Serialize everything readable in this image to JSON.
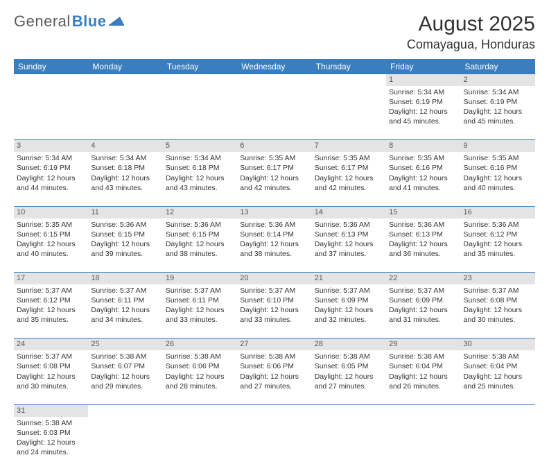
{
  "logo": {
    "word1": "General",
    "word2": "Blue"
  },
  "title": "August 2025",
  "location": "Comayagua, Honduras",
  "colors": {
    "header_bg": "#3a7ebf",
    "header_text": "#ffffff",
    "daynum_bg": "#e4e4e4",
    "border": "#3a7ebf",
    "text": "#333333",
    "logo_gray": "#5a5a5a",
    "logo_blue": "#3a7ebf",
    "background": "#ffffff"
  },
  "day_headers": [
    "Sunday",
    "Monday",
    "Tuesday",
    "Wednesday",
    "Thursday",
    "Friday",
    "Saturday"
  ],
  "weeks": [
    {
      "nums": [
        "",
        "",
        "",
        "",
        "",
        "1",
        "2"
      ],
      "cells": [
        null,
        null,
        null,
        null,
        null,
        {
          "sunrise": "Sunrise: 5:34 AM",
          "sunset": "Sunset: 6:19 PM",
          "day1": "Daylight: 12 hours",
          "day2": "and 45 minutes."
        },
        {
          "sunrise": "Sunrise: 5:34 AM",
          "sunset": "Sunset: 6:19 PM",
          "day1": "Daylight: 12 hours",
          "day2": "and 45 minutes."
        }
      ]
    },
    {
      "nums": [
        "3",
        "4",
        "5",
        "6",
        "7",
        "8",
        "9"
      ],
      "cells": [
        {
          "sunrise": "Sunrise: 5:34 AM",
          "sunset": "Sunset: 6:19 PM",
          "day1": "Daylight: 12 hours",
          "day2": "and 44 minutes."
        },
        {
          "sunrise": "Sunrise: 5:34 AM",
          "sunset": "Sunset: 6:18 PM",
          "day1": "Daylight: 12 hours",
          "day2": "and 43 minutes."
        },
        {
          "sunrise": "Sunrise: 5:34 AM",
          "sunset": "Sunset: 6:18 PM",
          "day1": "Daylight: 12 hours",
          "day2": "and 43 minutes."
        },
        {
          "sunrise": "Sunrise: 5:35 AM",
          "sunset": "Sunset: 6:17 PM",
          "day1": "Daylight: 12 hours",
          "day2": "and 42 minutes."
        },
        {
          "sunrise": "Sunrise: 5:35 AM",
          "sunset": "Sunset: 6:17 PM",
          "day1": "Daylight: 12 hours",
          "day2": "and 42 minutes."
        },
        {
          "sunrise": "Sunrise: 5:35 AM",
          "sunset": "Sunset: 6:16 PM",
          "day1": "Daylight: 12 hours",
          "day2": "and 41 minutes."
        },
        {
          "sunrise": "Sunrise: 5:35 AM",
          "sunset": "Sunset: 6:16 PM",
          "day1": "Daylight: 12 hours",
          "day2": "and 40 minutes."
        }
      ]
    },
    {
      "nums": [
        "10",
        "11",
        "12",
        "13",
        "14",
        "15",
        "16"
      ],
      "cells": [
        {
          "sunrise": "Sunrise: 5:35 AM",
          "sunset": "Sunset: 6:15 PM",
          "day1": "Daylight: 12 hours",
          "day2": "and 40 minutes."
        },
        {
          "sunrise": "Sunrise: 5:36 AM",
          "sunset": "Sunset: 6:15 PM",
          "day1": "Daylight: 12 hours",
          "day2": "and 39 minutes."
        },
        {
          "sunrise": "Sunrise: 5:36 AM",
          "sunset": "Sunset: 6:15 PM",
          "day1": "Daylight: 12 hours",
          "day2": "and 38 minutes."
        },
        {
          "sunrise": "Sunrise: 5:36 AM",
          "sunset": "Sunset: 6:14 PM",
          "day1": "Daylight: 12 hours",
          "day2": "and 38 minutes."
        },
        {
          "sunrise": "Sunrise: 5:36 AM",
          "sunset": "Sunset: 6:13 PM",
          "day1": "Daylight: 12 hours",
          "day2": "and 37 minutes."
        },
        {
          "sunrise": "Sunrise: 5:36 AM",
          "sunset": "Sunset: 6:13 PM",
          "day1": "Daylight: 12 hours",
          "day2": "and 36 minutes."
        },
        {
          "sunrise": "Sunrise: 5:36 AM",
          "sunset": "Sunset: 6:12 PM",
          "day1": "Daylight: 12 hours",
          "day2": "and 35 minutes."
        }
      ]
    },
    {
      "nums": [
        "17",
        "18",
        "19",
        "20",
        "21",
        "22",
        "23"
      ],
      "cells": [
        {
          "sunrise": "Sunrise: 5:37 AM",
          "sunset": "Sunset: 6:12 PM",
          "day1": "Daylight: 12 hours",
          "day2": "and 35 minutes."
        },
        {
          "sunrise": "Sunrise: 5:37 AM",
          "sunset": "Sunset: 6:11 PM",
          "day1": "Daylight: 12 hours",
          "day2": "and 34 minutes."
        },
        {
          "sunrise": "Sunrise: 5:37 AM",
          "sunset": "Sunset: 6:11 PM",
          "day1": "Daylight: 12 hours",
          "day2": "and 33 minutes."
        },
        {
          "sunrise": "Sunrise: 5:37 AM",
          "sunset": "Sunset: 6:10 PM",
          "day1": "Daylight: 12 hours",
          "day2": "and 33 minutes."
        },
        {
          "sunrise": "Sunrise: 5:37 AM",
          "sunset": "Sunset: 6:09 PM",
          "day1": "Daylight: 12 hours",
          "day2": "and 32 minutes."
        },
        {
          "sunrise": "Sunrise: 5:37 AM",
          "sunset": "Sunset: 6:09 PM",
          "day1": "Daylight: 12 hours",
          "day2": "and 31 minutes."
        },
        {
          "sunrise": "Sunrise: 5:37 AM",
          "sunset": "Sunset: 6:08 PM",
          "day1": "Daylight: 12 hours",
          "day2": "and 30 minutes."
        }
      ]
    },
    {
      "nums": [
        "24",
        "25",
        "26",
        "27",
        "28",
        "29",
        "30"
      ],
      "cells": [
        {
          "sunrise": "Sunrise: 5:37 AM",
          "sunset": "Sunset: 6:08 PM",
          "day1": "Daylight: 12 hours",
          "day2": "and 30 minutes."
        },
        {
          "sunrise": "Sunrise: 5:38 AM",
          "sunset": "Sunset: 6:07 PM",
          "day1": "Daylight: 12 hours",
          "day2": "and 29 minutes."
        },
        {
          "sunrise": "Sunrise: 5:38 AM",
          "sunset": "Sunset: 6:06 PM",
          "day1": "Daylight: 12 hours",
          "day2": "and 28 minutes."
        },
        {
          "sunrise": "Sunrise: 5:38 AM",
          "sunset": "Sunset: 6:06 PM",
          "day1": "Daylight: 12 hours",
          "day2": "and 27 minutes."
        },
        {
          "sunrise": "Sunrise: 5:38 AM",
          "sunset": "Sunset: 6:05 PM",
          "day1": "Daylight: 12 hours",
          "day2": "and 27 minutes."
        },
        {
          "sunrise": "Sunrise: 5:38 AM",
          "sunset": "Sunset: 6:04 PM",
          "day1": "Daylight: 12 hours",
          "day2": "and 26 minutes."
        },
        {
          "sunrise": "Sunrise: 5:38 AM",
          "sunset": "Sunset: 6:04 PM",
          "day1": "Daylight: 12 hours",
          "day2": "and 25 minutes."
        }
      ]
    },
    {
      "nums": [
        "31",
        "",
        "",
        "",
        "",
        "",
        ""
      ],
      "cells": [
        {
          "sunrise": "Sunrise: 5:38 AM",
          "sunset": "Sunset: 6:03 PM",
          "day1": "Daylight: 12 hours",
          "day2": "and 24 minutes."
        },
        null,
        null,
        null,
        null,
        null,
        null
      ]
    }
  ]
}
